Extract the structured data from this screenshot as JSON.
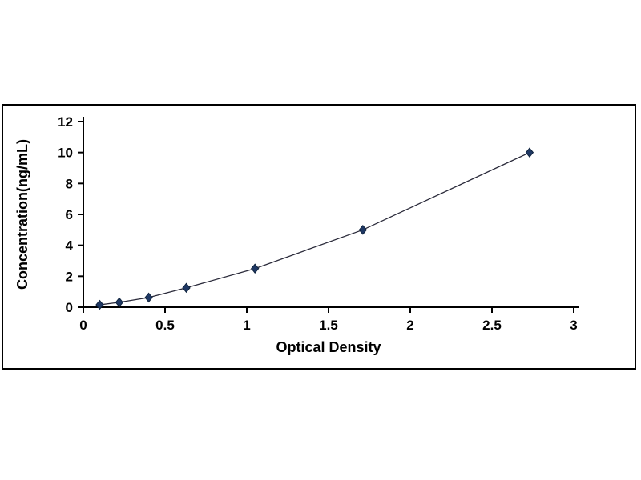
{
  "chart_data": {
    "type": "line",
    "title": "",
    "xlabel": "Optical Density",
    "ylabel": "Concentration(ng/mL)",
    "x": [
      0.1,
      0.22,
      0.4,
      0.63,
      1.05,
      1.71,
      2.73
    ],
    "y": [
      0.156,
      0.313,
      0.625,
      1.25,
      2.5,
      5,
      10
    ],
    "xlim": [
      0,
      3
    ],
    "ylim": [
      0,
      12
    ],
    "xticks": [
      0,
      0.5,
      1,
      1.5,
      2,
      2.5,
      3
    ],
    "yticks": [
      0,
      2,
      4,
      6,
      8,
      10,
      12
    ],
    "xtick_labels": [
      "0",
      "0.5",
      "1",
      "1.5",
      "2",
      "2.5",
      "3"
    ],
    "ytick_labels": [
      "0",
      "2",
      "4",
      "6",
      "8",
      "10",
      "12"
    ],
    "marker": "diamond",
    "grid": false,
    "legend": false,
    "colors": {
      "line": "#2a2a3a",
      "marker": "#1f3864",
      "marker_stroke": "#10243e",
      "axis": "#000000",
      "frame_border": "#000000",
      "background": "#ffffff"
    }
  }
}
